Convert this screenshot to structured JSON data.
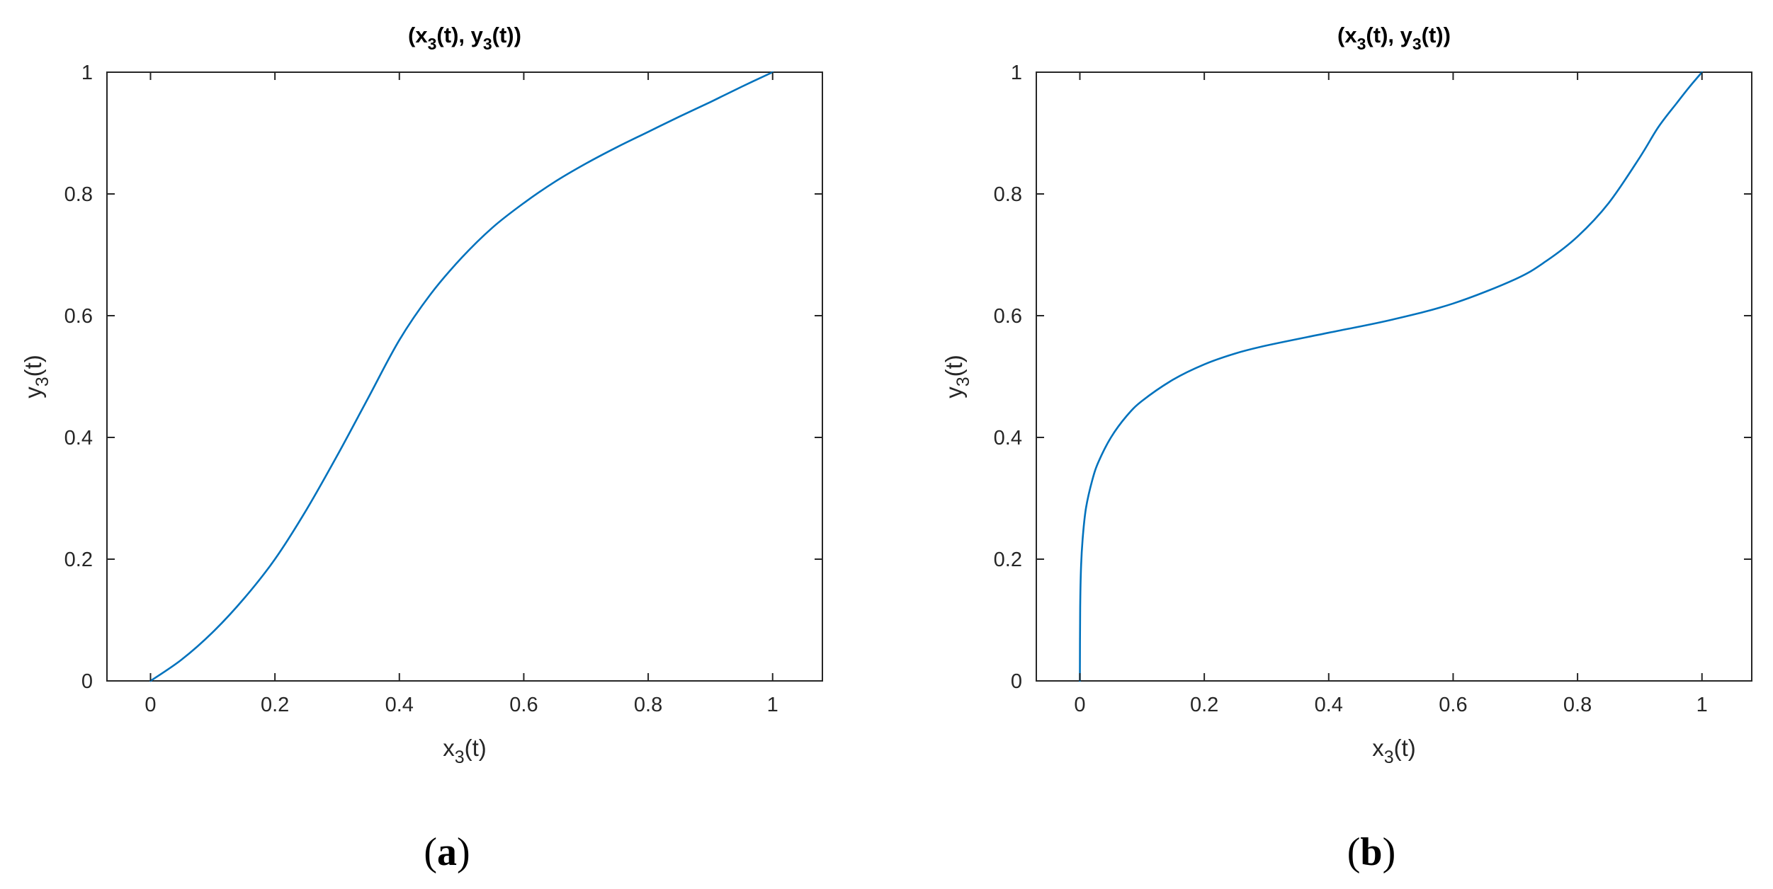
{
  "chart_data": [
    {
      "type": "line",
      "panel_label": "a",
      "title": {
        "open": "(x",
        "sub1": "3",
        "mid": "(t), y",
        "sub2": "3",
        "close": "(t))"
      },
      "xlabel": {
        "base": "x",
        "sub": "3",
        "rest": "(t)"
      },
      "ylabel": {
        "base": "y",
        "sub": "3",
        "rest": "(t)"
      },
      "xlim": [
        -0.07,
        1.08
      ],
      "ylim": [
        0,
        1
      ],
      "xticks": [
        0,
        0.2,
        0.4,
        0.6,
        0.8,
        1
      ],
      "xtick_labels": [
        "0",
        "0.2",
        "0.4",
        "0.6",
        "0.8",
        "1"
      ],
      "yticks": [
        0,
        0.2,
        0.4,
        0.6,
        0.8,
        1
      ],
      "ytick_labels": [
        "0",
        "0.2",
        "0.4",
        "0.6",
        "0.8",
        "1"
      ],
      "grid": false,
      "line_color": "#0072BD",
      "series": [
        {
          "x": [
            0,
            0.05,
            0.1,
            0.15,
            0.2,
            0.25,
            0.3,
            0.35,
            0.4,
            0.45,
            0.5,
            0.55,
            0.6,
            0.65,
            0.7,
            0.75,
            0.8,
            0.85,
            0.9,
            0.95,
            1
          ],
          "y": [
            0,
            0.035,
            0.08,
            0.135,
            0.2,
            0.28,
            0.37,
            0.465,
            0.56,
            0.635,
            0.695,
            0.745,
            0.785,
            0.82,
            0.85,
            0.877,
            0.902,
            0.927,
            0.951,
            0.976,
            1
          ]
        }
      ]
    },
    {
      "type": "line",
      "panel_label": "b",
      "title": {
        "open": "(x",
        "sub1": "3",
        "mid": "(t), y",
        "sub2": "3",
        "close": "(t))"
      },
      "xlabel": {
        "base": "x",
        "sub": "3",
        "rest": "(t)"
      },
      "ylabel": {
        "base": "y",
        "sub": "3",
        "rest": "(t)"
      },
      "xlim": [
        -0.07,
        1.08
      ],
      "ylim": [
        0,
        1
      ],
      "xticks": [
        0,
        0.2,
        0.4,
        0.6,
        0.8,
        1
      ],
      "xtick_labels": [
        "0",
        "0.2",
        "0.4",
        "0.6",
        "0.8",
        "1"
      ],
      "yticks": [
        0,
        0.2,
        0.4,
        0.6,
        0.8,
        1
      ],
      "ytick_labels": [
        "0",
        "0.2",
        "0.4",
        "0.6",
        "0.8",
        "1"
      ],
      "grid": false,
      "line_color": "#0072BD",
      "series": [
        {
          "x": [
            0,
            0.0005,
            0.002,
            0.005,
            0.01,
            0.02,
            0.03,
            0.05,
            0.075,
            0.1,
            0.15,
            0.2,
            0.25,
            0.3,
            0.4,
            0.5,
            0.6,
            0.7,
            0.75,
            0.8,
            0.85,
            0.9,
            0.93,
            0.96,
            0.98,
            1
          ],
          "y": [
            0,
            0.12,
            0.19,
            0.24,
            0.285,
            0.33,
            0.36,
            0.4,
            0.435,
            0.46,
            0.495,
            0.52,
            0.538,
            0.551,
            0.572,
            0.593,
            0.62,
            0.66,
            0.69,
            0.73,
            0.785,
            0.86,
            0.91,
            0.95,
            0.976,
            1
          ]
        }
      ]
    }
  ]
}
